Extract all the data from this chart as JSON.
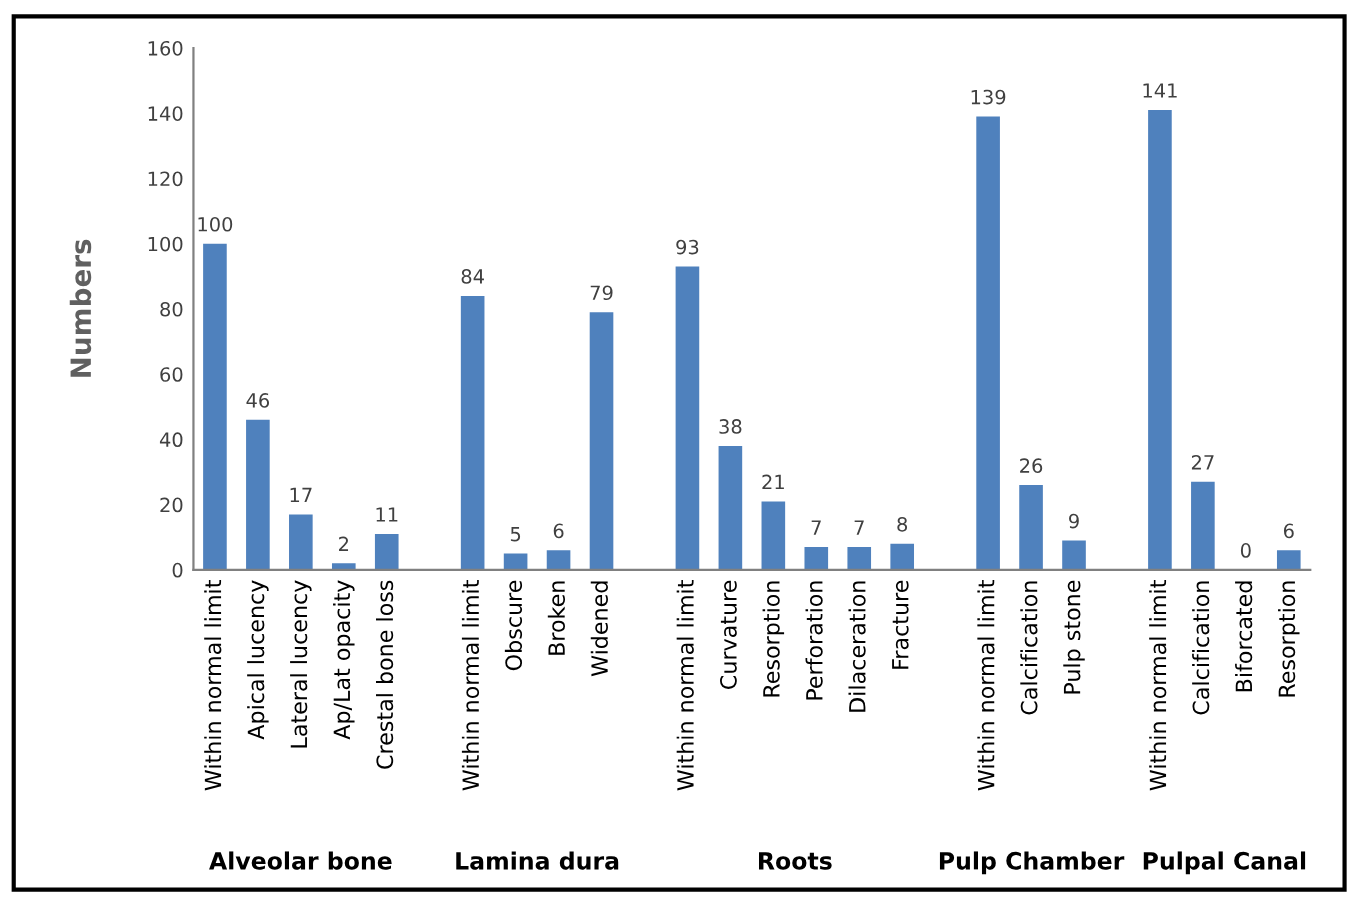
{
  "chart_data": {
    "type": "bar",
    "ylabel": "Numbers",
    "categories": [
      "Within normal limit",
      "Apical lucency",
      "Lateral lucency",
      "Ap/Lat opacity",
      "Crestal bone loss",
      null,
      "Within normal limit",
      "Obscure",
      "Broken",
      "Widened",
      null,
      "Within normal limit",
      "Curvature",
      "Resorption",
      "Perforation",
      "Dilaceration",
      "Fracture",
      null,
      "Within normal limit",
      "Calcification",
      "Pulp stone",
      null,
      "Within normal limit",
      "Calcification",
      "Biforcated",
      "Resorption"
    ],
    "values": [
      100,
      46,
      17,
      2,
      11,
      null,
      84,
      5,
      6,
      79,
      null,
      93,
      38,
      21,
      7,
      7,
      8,
      null,
      139,
      26,
      9,
      null,
      141,
      27,
      0,
      6
    ],
    "color": "#4f81bd",
    "data_labels": true,
    "ylim": [
      0,
      160
    ],
    "yticks": [
      0,
      20,
      40,
      60,
      80,
      100,
      120,
      140,
      160
    ],
    "grid": false,
    "annotations": [
      "Alveolar bone",
      "Lamina dura",
      "Roots",
      "Pulp Chamber",
      "Pulpal Canal"
    ]
  }
}
